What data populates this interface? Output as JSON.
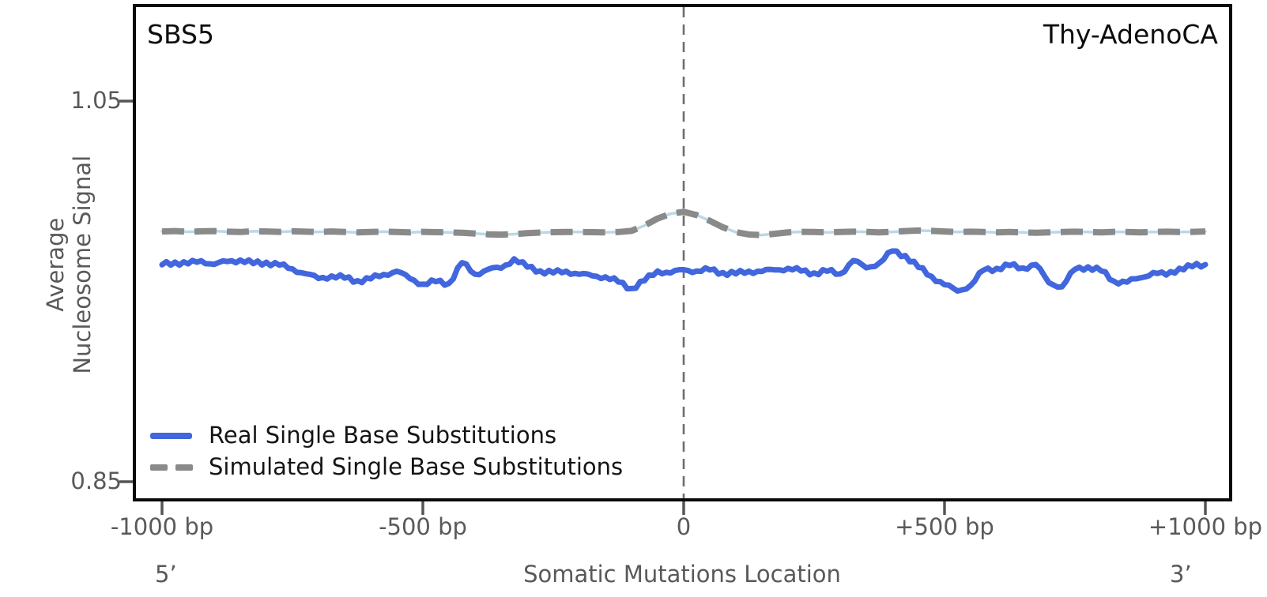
{
  "header": {
    "signature": "SBS5",
    "cancer_type": "Thy-AdenoCA"
  },
  "yaxis": {
    "label_line1": "Average",
    "label_line2": "Nucleosome Signal"
  },
  "xaxis": {
    "title": "Somatic Mutations Location",
    "left_end": "5’",
    "right_end": "3’"
  },
  "legend": {
    "items": [
      {
        "label": "Real Single Base Substitutions",
        "color": "#4166dd",
        "style": "solid"
      },
      {
        "label": "Simulated Single Base Substitutions",
        "color": "#8a8a8a",
        "style": "dashed"
      }
    ]
  },
  "colors": {
    "real_line": "#4166dd",
    "simulated_dash": "#8a8a8a",
    "simulated_underlay": "#b8d9e8",
    "center_line": "#6e6e6e",
    "axis_border": "#0a0a0a",
    "tick_mark": "#555555",
    "tick_text": "#595959"
  },
  "chart_data": {
    "type": "line",
    "title": "",
    "xlabel": "Somatic Mutations Location",
    "ylabel": "Average Nucleosome Signal",
    "xlim": [
      -1000,
      1000
    ],
    "ylim": [
      0.84,
      1.1
    ],
    "grid": false,
    "legend_position": "lower-left",
    "vline_x": 0,
    "yticks": [
      {
        "value": 1.05,
        "label": "1.05"
      },
      {
        "value": 0.85,
        "label": "0.85"
      }
    ],
    "xticks": [
      {
        "value": -1000,
        "label": "-1000 bp"
      },
      {
        "value": -500,
        "label": "-500 bp"
      },
      {
        "value": 0,
        "label": "0"
      },
      {
        "value": 500,
        "label": "+500 bp"
      },
      {
        "value": 1000,
        "label": "+1000 bp"
      }
    ],
    "x": [
      -1000,
      -975,
      -950,
      -925,
      -900,
      -875,
      -850,
      -825,
      -800,
      -775,
      -750,
      -725,
      -700,
      -675,
      -650,
      -625,
      -600,
      -575,
      -550,
      -525,
      -500,
      -475,
      -450,
      -425,
      -400,
      -375,
      -350,
      -325,
      -300,
      -275,
      -250,
      -225,
      -200,
      -175,
      -150,
      -125,
      -100,
      -75,
      -50,
      -25,
      0,
      25,
      50,
      75,
      100,
      125,
      150,
      175,
      200,
      225,
      250,
      275,
      300,
      325,
      350,
      375,
      400,
      425,
      450,
      475,
      500,
      525,
      550,
      575,
      600,
      625,
      650,
      675,
      700,
      725,
      750,
      775,
      800,
      825,
      850,
      875,
      900,
      925,
      950,
      975,
      1000
    ],
    "series": [
      {
        "name": "Real Single Base Substitutions",
        "values": [
          0.964,
          0.9654,
          0.9645,
          0.9661,
          0.9642,
          0.9657,
          0.9665,
          0.9646,
          0.9653,
          0.9638,
          0.9618,
          0.9593,
          0.9568,
          0.9581,
          0.957,
          0.9556,
          0.9566,
          0.9589,
          0.9606,
          0.9568,
          0.9538,
          0.9551,
          0.9542,
          0.9651,
          0.959,
          0.9616,
          0.9622,
          0.9671,
          0.9628,
          0.9608,
          0.9597,
          0.9606,
          0.959,
          0.9582,
          0.9576,
          0.9549,
          0.9515,
          0.9556,
          0.9607,
          0.9597,
          0.9614,
          0.9607,
          0.9613,
          0.9599,
          0.9592,
          0.9606,
          0.9605,
          0.9613,
          0.9621,
          0.9607,
          0.9597,
          0.9606,
          0.9592,
          0.9662,
          0.9624,
          0.9649,
          0.9712,
          0.9688,
          0.9626,
          0.9579,
          0.9535,
          0.9502,
          0.9531,
          0.9612,
          0.9621,
          0.9636,
          0.9623,
          0.9641,
          0.9546,
          0.9524,
          0.9616,
          0.9629,
          0.9608,
          0.9553,
          0.9549,
          0.9571,
          0.9599,
          0.9586,
          0.9621,
          0.963,
          0.9641
        ]
      },
      {
        "name": "Simulated Single Base Substitutions",
        "values": [
          0.9815,
          0.9817,
          0.9813,
          0.9816,
          0.9817,
          0.9814,
          0.9812,
          0.9816,
          0.9815,
          0.9813,
          0.9816,
          0.9814,
          0.9812,
          0.9815,
          0.9812,
          0.981,
          0.9812,
          0.9814,
          0.9812,
          0.981,
          0.9813,
          0.9811,
          0.981,
          0.9808,
          0.9804,
          0.98,
          0.9798,
          0.9801,
          0.9806,
          0.9809,
          0.9811,
          0.9812,
          0.9812,
          0.9811,
          0.981,
          0.9812,
          0.9818,
          0.9846,
          0.9883,
          0.9908,
          0.9918,
          0.9901,
          0.9871,
          0.9837,
          0.9811,
          0.9799,
          0.9796,
          0.9803,
          0.981,
          0.9813,
          0.9812,
          0.981,
          0.9812,
          0.9814,
          0.9813,
          0.981,
          0.9813,
          0.9817,
          0.982,
          0.9818,
          0.9815,
          0.9812,
          0.9814,
          0.9812,
          0.981,
          0.9812,
          0.981,
          0.9808,
          0.981,
          0.9812,
          0.9814,
          0.9812,
          0.981,
          0.9813,
          0.9812,
          0.981,
          0.9812,
          0.9814,
          0.9812,
          0.9813,
          0.9815
        ]
      }
    ]
  }
}
